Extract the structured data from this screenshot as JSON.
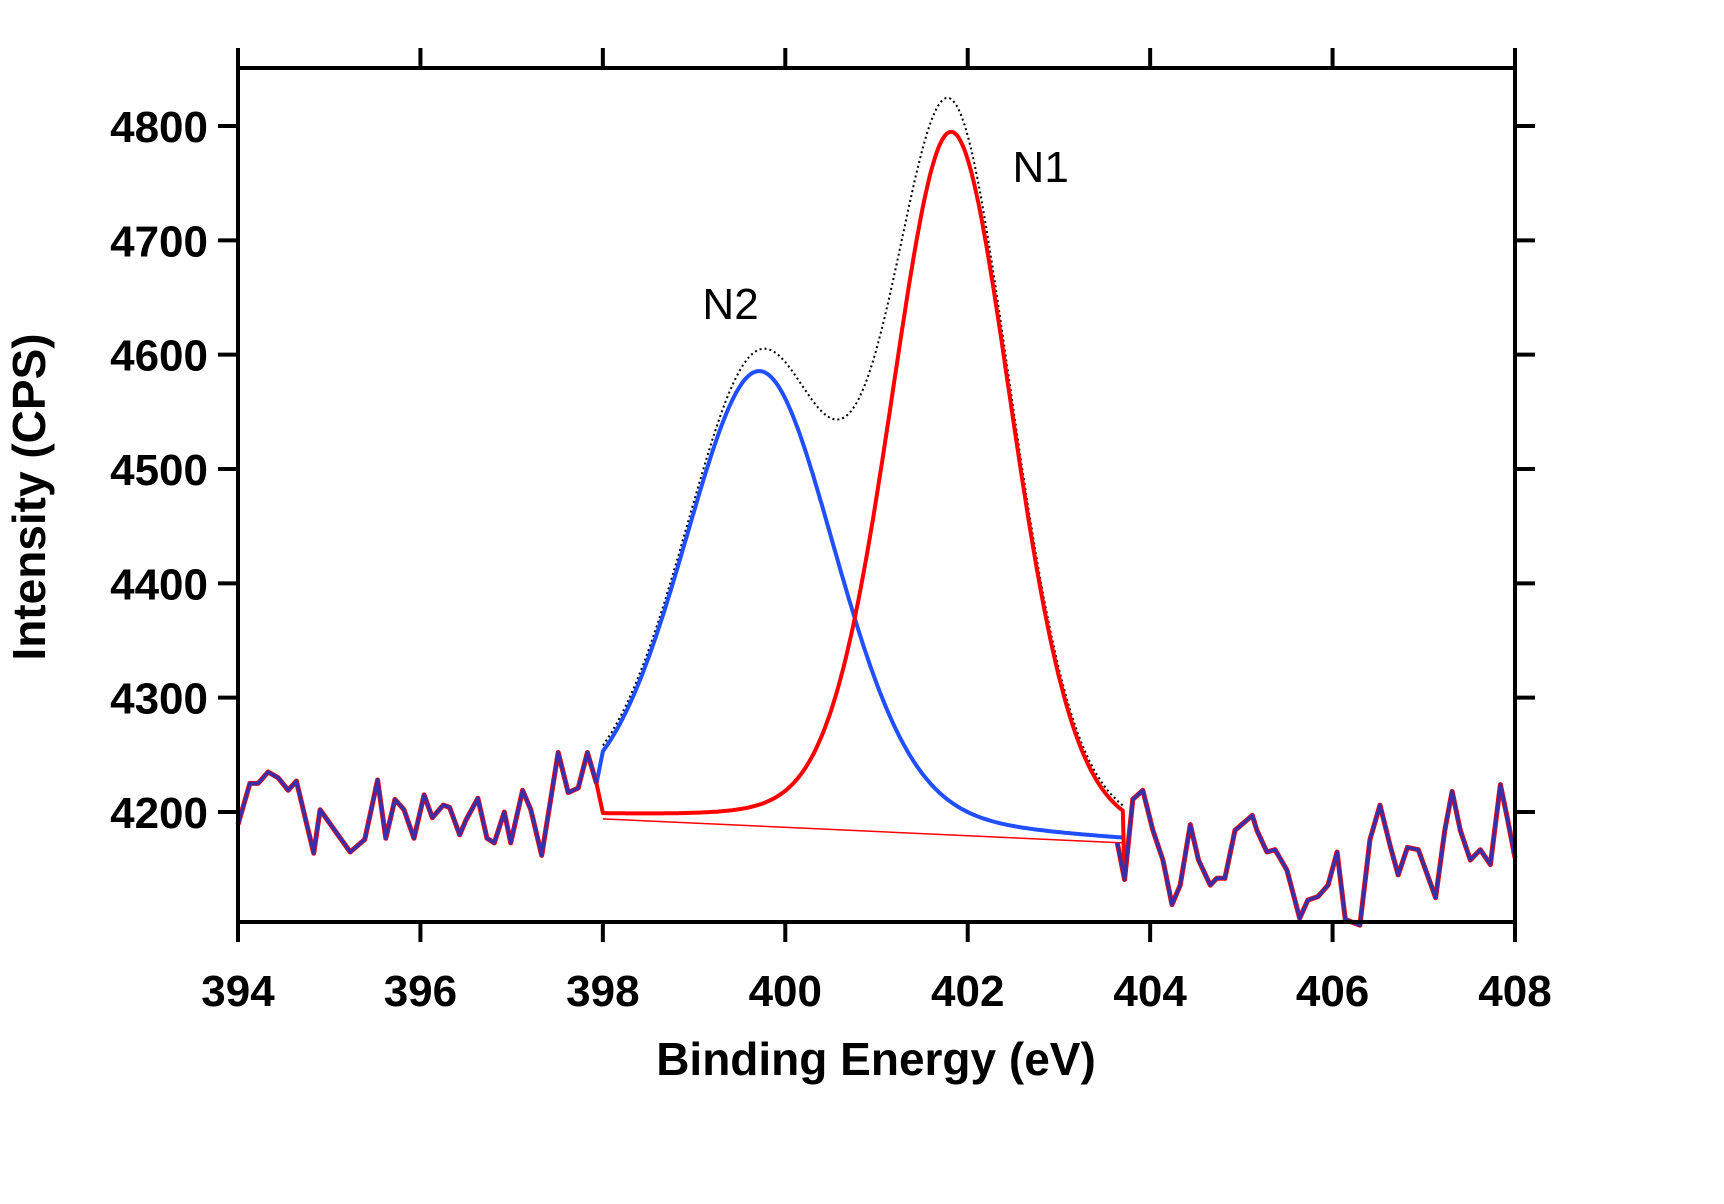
{
  "chart_data": {
    "type": "line",
    "xlabel": "Binding Energy (eV)",
    "ylabel": "Intensity (CPS)",
    "xlim": [
      394,
      408
    ],
    "ylim": [
      4104,
      4851
    ],
    "x_ticks": [
      "394",
      "396",
      "398",
      "400",
      "402",
      "404",
      "406",
      "408"
    ],
    "y_ticks": [
      "4200",
      "4300",
      "4400",
      "4500",
      "4600",
      "4700",
      "4800"
    ],
    "grid": false,
    "annotations": [
      {
        "text": "N1",
        "x": 402.8,
        "y": 4765
      },
      {
        "text": "N2",
        "x": 399.4,
        "y": 4645
      }
    ],
    "colors": {
      "N1": "#ff0000",
      "N2": "#1f4fff",
      "envelope": "#000000",
      "background": "#ff0000",
      "raw": "#3a2fa8"
    },
    "fit_region": [
      398.0,
      403.7
    ],
    "background_line": {
      "start": [
        398.0,
        4194
      ],
      "end": [
        403.7,
        4173
      ]
    },
    "peaks": [
      {
        "name": "N1",
        "center": 401.82,
        "height": 615,
        "fwhm": 1.58
      },
      {
        "name": "N2",
        "center": 399.72,
        "height": 398,
        "fwhm": 1.98
      }
    ],
    "raw_left": [
      [
        394.0,
        4189
      ],
      [
        394.13,
        4225
      ],
      [
        394.22,
        4225
      ],
      [
        394.33,
        4235
      ],
      [
        394.44,
        4230
      ],
      [
        394.55,
        4219
      ],
      [
        394.64,
        4227
      ],
      [
        394.83,
        4164
      ],
      [
        394.9,
        4202
      ],
      [
        395.06,
        4184
      ],
      [
        395.23,
        4165
      ],
      [
        395.39,
        4176
      ],
      [
        395.53,
        4228
      ],
      [
        395.62,
        4177
      ],
      [
        395.72,
        4211
      ],
      [
        395.82,
        4202
      ],
      [
        395.93,
        4177
      ],
      [
        396.04,
        4215
      ],
      [
        396.13,
        4195
      ],
      [
        396.25,
        4206
      ],
      [
        396.32,
        4204
      ],
      [
        396.43,
        4180
      ],
      [
        396.5,
        4193
      ],
      [
        396.63,
        4212
      ],
      [
        396.73,
        4177
      ],
      [
        396.81,
        4173
      ],
      [
        396.92,
        4200
      ],
      [
        396.99,
        4173
      ],
      [
        397.12,
        4219
      ],
      [
        397.21,
        4202
      ],
      [
        397.33,
        4162
      ],
      [
        397.51,
        4252
      ],
      [
        397.62,
        4217
      ],
      [
        397.73,
        4221
      ],
      [
        397.83,
        4252
      ],
      [
        397.93,
        4225
      ]
    ],
    "raw_right": [
      [
        403.64,
        4173
      ],
      [
        403.72,
        4141
      ],
      [
        403.81,
        4211
      ],
      [
        403.92,
        4219
      ],
      [
        404.03,
        4184
      ],
      [
        404.14,
        4158
      ],
      [
        404.24,
        4119
      ],
      [
        404.33,
        4136
      ],
      [
        404.44,
        4189
      ],
      [
        404.53,
        4158
      ],
      [
        404.66,
        4136
      ],
      [
        404.73,
        4142
      ],
      [
        404.82,
        4142
      ],
      [
        404.93,
        4184
      ],
      [
        405.12,
        4197
      ],
      [
        405.17,
        4184
      ],
      [
        405.28,
        4165
      ],
      [
        405.37,
        4167
      ],
      [
        405.5,
        4149
      ],
      [
        405.64,
        4107
      ],
      [
        405.73,
        4123
      ],
      [
        405.84,
        4126
      ],
      [
        405.95,
        4136
      ],
      [
        406.05,
        4165
      ],
      [
        406.14,
        4106
      ],
      [
        406.3,
        4101
      ],
      [
        406.41,
        4176
      ],
      [
        406.52,
        4206
      ],
      [
        406.63,
        4171
      ],
      [
        406.72,
        4145
      ],
      [
        406.82,
        4169
      ],
      [
        406.94,
        4167
      ],
      [
        407.04,
        4145
      ],
      [
        407.13,
        4125
      ],
      [
        407.23,
        4184
      ],
      [
        407.31,
        4218
      ],
      [
        407.4,
        4184
      ],
      [
        407.51,
        4158
      ],
      [
        407.62,
        4167
      ],
      [
        407.73,
        4154
      ],
      [
        407.84,
        4224
      ],
      [
        407.92,
        4193
      ],
      [
        408.0,
        4160
      ]
    ]
  }
}
